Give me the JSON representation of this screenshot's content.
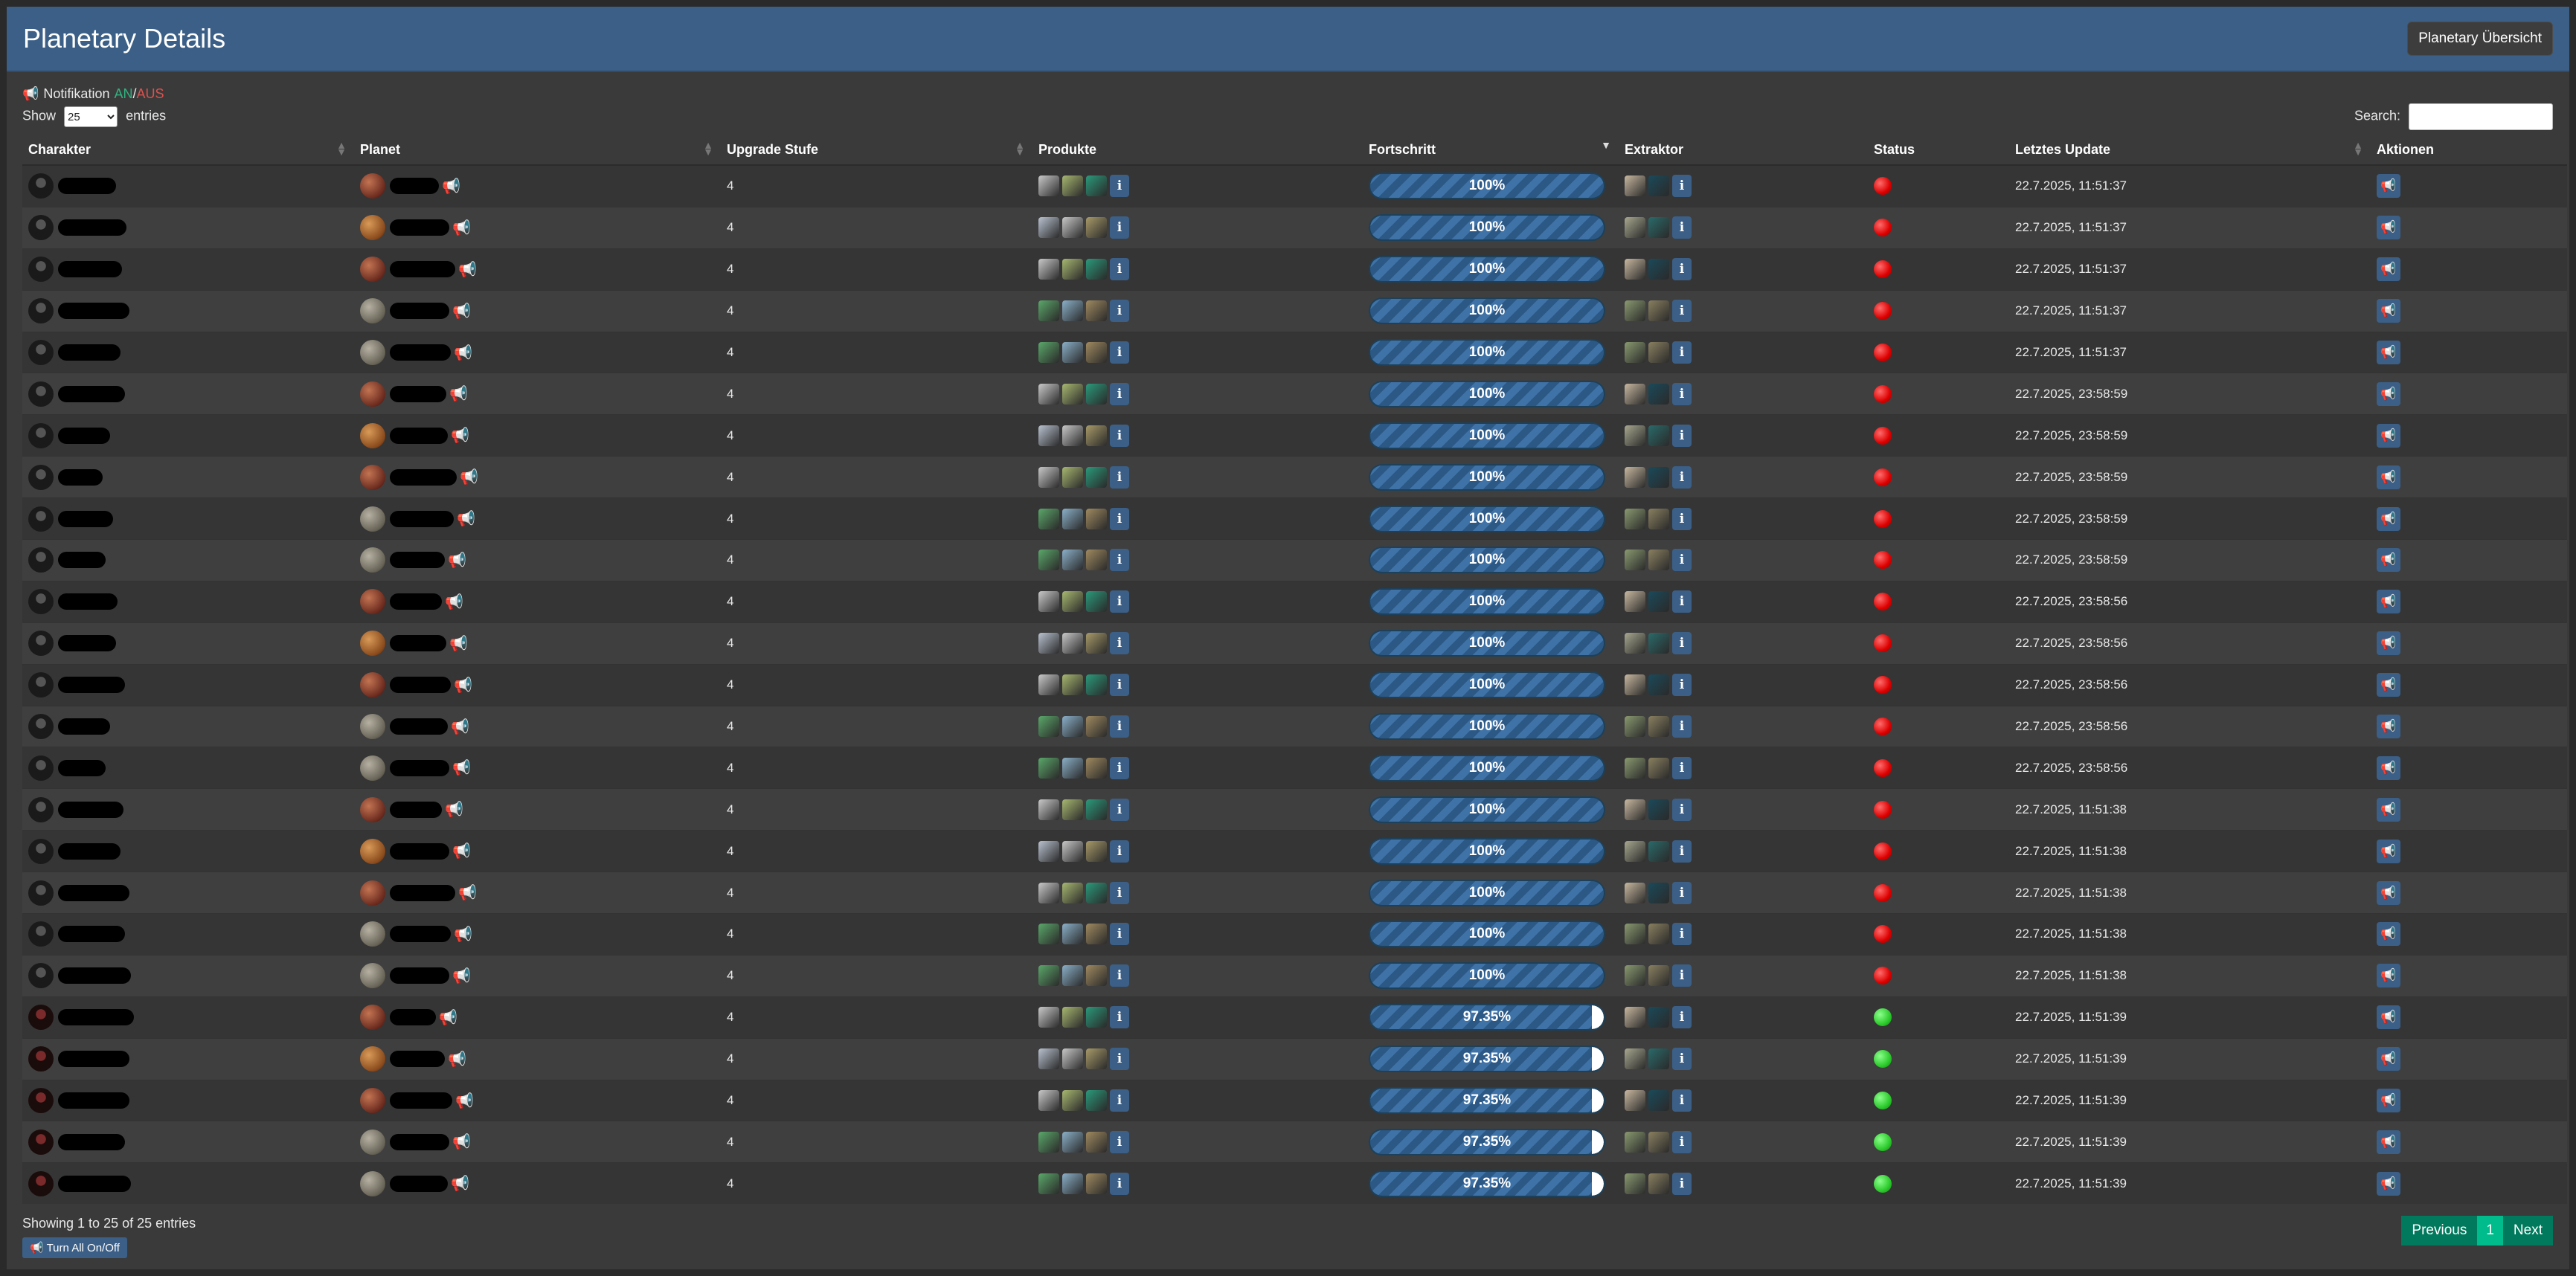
{
  "page": {
    "title": "Planetary Details",
    "overview_button": "Planetary Übersicht"
  },
  "notification": {
    "label": "Notifikation",
    "on": "AN",
    "sep": "/",
    "off": "AUS"
  },
  "length": {
    "show": "Show",
    "value": "25",
    "entries": "entries"
  },
  "search": {
    "label": "Search:",
    "placeholder": ""
  },
  "columns": {
    "charakter": "Charakter",
    "planet": "Planet",
    "upgrade": "Upgrade Stufe",
    "produkte": "Produkte",
    "fortschritt": "Fortschritt",
    "extraktor": "Extraktor",
    "status": "Status",
    "letztes_update": "Letztes Update",
    "aktionen": "Aktionen"
  },
  "rows": [
    {
      "upgrade": "4",
      "progress": "100%",
      "update": "22.7.2025, 11:51:37",
      "status": "red",
      "planet": "lava",
      "set": "a"
    },
    {
      "upgrade": "4",
      "progress": "100%",
      "update": "22.7.2025, 11:51:37",
      "status": "red",
      "planet": "barren",
      "set": "b"
    },
    {
      "upgrade": "4",
      "progress": "100%",
      "update": "22.7.2025, 11:51:37",
      "status": "red",
      "planet": "lava",
      "set": "a"
    },
    {
      "upgrade": "4",
      "progress": "100%",
      "update": "22.7.2025, 11:51:37",
      "status": "red",
      "planet": "plasma",
      "set": "c"
    },
    {
      "upgrade": "4",
      "progress": "100%",
      "update": "22.7.2025, 11:51:37",
      "status": "red",
      "planet": "plasma",
      "set": "c"
    },
    {
      "upgrade": "4",
      "progress": "100%",
      "update": "22.7.2025, 23:58:59",
      "status": "red",
      "planet": "lava",
      "set": "a"
    },
    {
      "upgrade": "4",
      "progress": "100%",
      "update": "22.7.2025, 23:58:59",
      "status": "red",
      "planet": "barren",
      "set": "b"
    },
    {
      "upgrade": "4",
      "progress": "100%",
      "update": "22.7.2025, 23:58:59",
      "status": "red",
      "planet": "lava",
      "set": "a"
    },
    {
      "upgrade": "4",
      "progress": "100%",
      "update": "22.7.2025, 23:58:59",
      "status": "red",
      "planet": "plasma",
      "set": "c"
    },
    {
      "upgrade": "4",
      "progress": "100%",
      "update": "22.7.2025, 23:58:59",
      "status": "red",
      "planet": "plasma",
      "set": "c"
    },
    {
      "upgrade": "4",
      "progress": "100%",
      "update": "22.7.2025, 23:58:56",
      "status": "red",
      "planet": "lava",
      "set": "a"
    },
    {
      "upgrade": "4",
      "progress": "100%",
      "update": "22.7.2025, 23:58:56",
      "status": "red",
      "planet": "barren",
      "set": "b"
    },
    {
      "upgrade": "4",
      "progress": "100%",
      "update": "22.7.2025, 23:58:56",
      "status": "red",
      "planet": "lava",
      "set": "a"
    },
    {
      "upgrade": "4",
      "progress": "100%",
      "update": "22.7.2025, 23:58:56",
      "status": "red",
      "planet": "plasma",
      "set": "c"
    },
    {
      "upgrade": "4",
      "progress": "100%",
      "update": "22.7.2025, 23:58:56",
      "status": "red",
      "planet": "plasma",
      "set": "c"
    },
    {
      "upgrade": "4",
      "progress": "100%",
      "update": "22.7.2025, 11:51:38",
      "status": "red",
      "planet": "lava",
      "set": "a"
    },
    {
      "upgrade": "4",
      "progress": "100%",
      "update": "22.7.2025, 11:51:38",
      "status": "red",
      "planet": "barren",
      "set": "b"
    },
    {
      "upgrade": "4",
      "progress": "100%",
      "update": "22.7.2025, 11:51:38",
      "status": "red",
      "planet": "lava",
      "set": "a"
    },
    {
      "upgrade": "4",
      "progress": "100%",
      "update": "22.7.2025, 11:51:38",
      "status": "red",
      "planet": "plasma",
      "set": "c"
    },
    {
      "upgrade": "4",
      "progress": "100%",
      "update": "22.7.2025, 11:51:38",
      "status": "red",
      "planet": "plasma",
      "set": "c"
    },
    {
      "upgrade": "4",
      "progress": "97.35%",
      "update": "22.7.2025, 11:51:39",
      "status": "green",
      "planet": "lava",
      "set": "a"
    },
    {
      "upgrade": "4",
      "progress": "97.35%",
      "update": "22.7.2025, 11:51:39",
      "status": "green",
      "planet": "barren",
      "set": "b"
    },
    {
      "upgrade": "4",
      "progress": "97.35%",
      "update": "22.7.2025, 11:51:39",
      "status": "green",
      "planet": "lava",
      "set": "a"
    },
    {
      "upgrade": "4",
      "progress": "97.35%",
      "update": "22.7.2025, 11:51:39",
      "status": "green",
      "planet": "plasma",
      "set": "c"
    },
    {
      "upgrade": "4",
      "progress": "97.35%",
      "update": "22.7.2025, 11:51:39",
      "status": "green",
      "planet": "plasma",
      "set": "c"
    }
  ],
  "footer": {
    "info": "Showing 1 to 25 of 25 entries",
    "previous": "Previous",
    "page": "1",
    "next": "Next",
    "turn_all": "Turn All On/Off"
  },
  "icons": {
    "megaphone": "megaphone-icon",
    "info": "info-icon",
    "sort": "sort-icon"
  },
  "colors": {
    "header": "#3b5f86",
    "on": "#2fb380",
    "off": "#d9534f",
    "pager": "#00795c",
    "pager_active": "#00bc8c"
  }
}
